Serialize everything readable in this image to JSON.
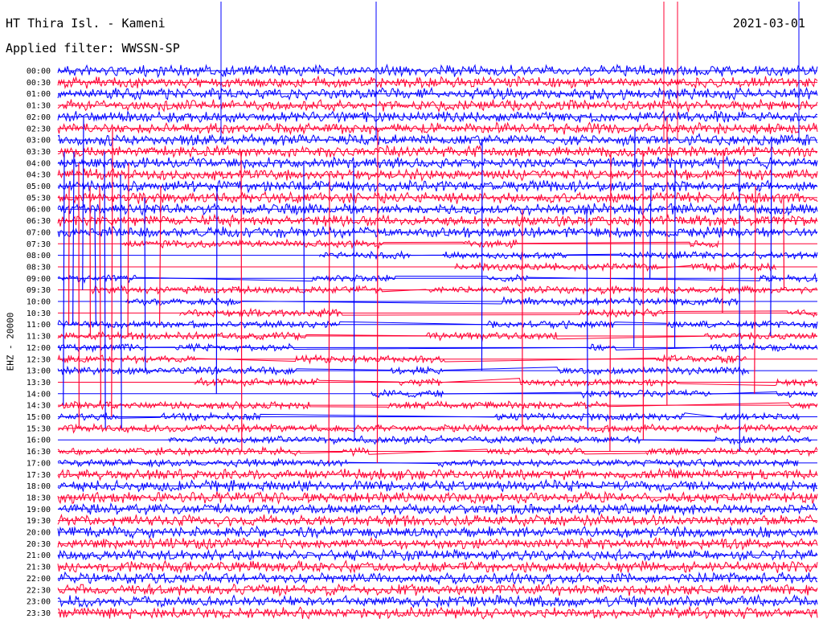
{
  "header": {
    "station": "HT Thira Isl. - Kameni",
    "date": "2021-03-01",
    "filter": "Applied filter: WWSSN-SP"
  },
  "chart_data": {
    "type": "line",
    "title": "HT Thira Isl. - Kameni",
    "ylabel": "EHZ - 20000",
    "colors": [
      "#0000ff",
      "#ff0033"
    ],
    "rows": [
      {
        "label": "00:00",
        "color": "#0000ff"
      },
      {
        "label": "00:30",
        "color": "#ff0033"
      },
      {
        "label": "01:00",
        "color": "#0000ff"
      },
      {
        "label": "01:30",
        "color": "#ff0033"
      },
      {
        "label": "02:00",
        "color": "#0000ff"
      },
      {
        "label": "02:30",
        "color": "#ff0033"
      },
      {
        "label": "03:00",
        "color": "#0000ff"
      },
      {
        "label": "03:30",
        "color": "#ff0033"
      },
      {
        "label": "04:00",
        "color": "#0000ff"
      },
      {
        "label": "04:30",
        "color": "#ff0033"
      },
      {
        "label": "05:00",
        "color": "#0000ff"
      },
      {
        "label": "05:30",
        "color": "#ff0033"
      },
      {
        "label": "06:00",
        "color": "#0000ff"
      },
      {
        "label": "06:30",
        "color": "#ff0033"
      },
      {
        "label": "07:00",
        "color": "#0000ff"
      },
      {
        "label": "07:30",
        "color": "#ff0033"
      },
      {
        "label": "08:00",
        "color": "#0000ff"
      },
      {
        "label": "08:30",
        "color": "#ff0033"
      },
      {
        "label": "09:00",
        "color": "#0000ff"
      },
      {
        "label": "09:30",
        "color": "#ff0033"
      },
      {
        "label": "10:00",
        "color": "#0000ff"
      },
      {
        "label": "10:30",
        "color": "#ff0033"
      },
      {
        "label": "11:00",
        "color": "#0000ff"
      },
      {
        "label": "11:30",
        "color": "#ff0033"
      },
      {
        "label": "12:00",
        "color": "#0000ff"
      },
      {
        "label": "12:30",
        "color": "#ff0033"
      },
      {
        "label": "13:00",
        "color": "#0000ff"
      },
      {
        "label": "13:30",
        "color": "#ff0033"
      },
      {
        "label": "14:00",
        "color": "#0000ff"
      },
      {
        "label": "14:30",
        "color": "#ff0033"
      },
      {
        "label": "15:00",
        "color": "#0000ff"
      },
      {
        "label": "15:30",
        "color": "#ff0033"
      },
      {
        "label": "16:00",
        "color": "#0000ff"
      },
      {
        "label": "16:30",
        "color": "#ff0033"
      },
      {
        "label": "17:00",
        "color": "#0000ff"
      },
      {
        "label": "17:30",
        "color": "#ff0033"
      },
      {
        "label": "18:00",
        "color": "#0000ff"
      },
      {
        "label": "18:30",
        "color": "#ff0033"
      },
      {
        "label": "19:00",
        "color": "#0000ff"
      },
      {
        "label": "19:30",
        "color": "#ff0033"
      },
      {
        "label": "20:00",
        "color": "#0000ff"
      },
      {
        "label": "20:30",
        "color": "#ff0033"
      },
      {
        "label": "21:00",
        "color": "#0000ff"
      },
      {
        "label": "21:30",
        "color": "#ff0033"
      },
      {
        "label": "22:00",
        "color": "#0000ff"
      },
      {
        "label": "22:30",
        "color": "#ff0033"
      },
      {
        "label": "23:00",
        "color": "#0000ff"
      },
      {
        "label": "23:30",
        "color": "#ff0033"
      }
    ]
  }
}
